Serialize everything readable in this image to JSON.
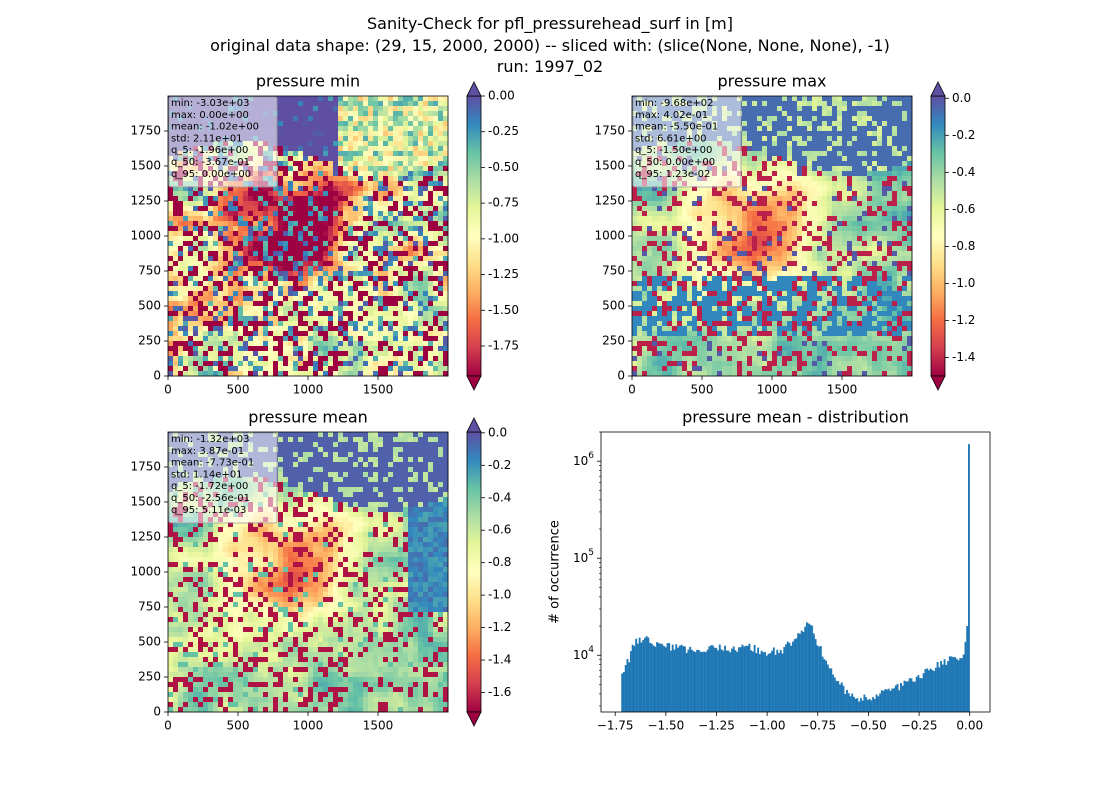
{
  "figure": {
    "title_lines": [
      "Sanity-Check for pfl_pressurehead_surf in [m]",
      "original data shape: (29, 15, 2000, 2000) -- sliced with: (slice(None, None, None), -1)",
      "run: 1997_02"
    ]
  },
  "chart_data": [
    {
      "type": "heatmap",
      "title": "pressure min",
      "xlim": [
        0,
        2000
      ],
      "ylim": [
        0,
        2000
      ],
      "xticks": [
        "0",
        "500",
        "1000",
        "1500"
      ],
      "yticks": [
        "0",
        "250",
        "500",
        "750",
        "1000",
        "1250",
        "1500",
        "1750"
      ],
      "colorbar": {
        "ticks": [
          "0.00",
          "-0.25",
          "-0.50",
          "-0.75",
          "-1.00",
          "-1.25",
          "-1.50",
          "-1.75"
        ],
        "vmin": -1.96,
        "vmax": 0.0,
        "extend": "both",
        "colormap": "Spectral"
      },
      "stats": [
        "min: -3.03e+03",
        "max: 0.00e+00",
        "mean: -1.02e+00",
        "std: 2.11e+01",
        "q_5: -1.96e+00",
        "q_50: -3.67e-01",
        "q_95: 0.00e+00"
      ]
    },
    {
      "type": "heatmap",
      "title": "pressure max",
      "xlim": [
        0,
        2000
      ],
      "ylim": [
        0,
        2000
      ],
      "xticks": [
        "0",
        "500",
        "1000",
        "1500"
      ],
      "yticks": [
        "0",
        "250",
        "500",
        "750",
        "1000",
        "1250",
        "1500",
        "1750"
      ],
      "colorbar": {
        "ticks": [
          "0.0",
          "-0.2",
          "-0.4",
          "-0.6",
          "-0.8",
          "-1.0",
          "-1.2",
          "-1.4"
        ],
        "vmin": -1.5,
        "vmax": 0.0123,
        "extend": "both",
        "colormap": "Spectral"
      },
      "stats": [
        "min: -9.68e+02",
        "max: 4.02e-01",
        "mean: -5.50e-01",
        "std: 6.61e+00",
        "q_5: -1.50e+00",
        "q_50: 0.00e+00",
        "q_95: 1.23e-02"
      ]
    },
    {
      "type": "heatmap",
      "title": "pressure mean",
      "xlim": [
        0,
        2000
      ],
      "ylim": [
        0,
        2000
      ],
      "xticks": [
        "0",
        "500",
        "1000",
        "1500"
      ],
      "yticks": [
        "0",
        "250",
        "500",
        "750",
        "1000",
        "1250",
        "1500",
        "1750"
      ],
      "colorbar": {
        "ticks": [
          "0.0",
          "-0.2",
          "-0.4",
          "-0.6",
          "-0.8",
          "-1.0",
          "-1.2",
          "-1.4",
          "-1.6"
        ],
        "vmin": -1.72,
        "vmax": 0.0051,
        "extend": "both",
        "colormap": "Spectral"
      },
      "stats": [
        "min: -1.32e+03",
        "max: 3.87e-01",
        "mean: -7.73e-01",
        "std: 1.14e+01",
        "q_5: -1.72e+00",
        "q_50: -2.56e-01",
        "q_95: 5.11e-03"
      ]
    },
    {
      "type": "bar",
      "title": "pressure mean - distribution",
      "ylabel": "# of occurrence",
      "yscale": "log",
      "xlim": [
        -1.82,
        0.1
      ],
      "ylim": [
        2600,
        2000000
      ],
      "xticks": [
        "-1.75",
        "-1.50",
        "-1.25",
        "-1.00",
        "-0.75",
        "-0.50",
        "-0.25",
        "0.00"
      ],
      "yticks": [
        "10^4",
        "10^5",
        "10^6"
      ],
      "color": "#1f77b4",
      "bin_range": [
        -1.72,
        0.0
      ],
      "curve_knots": {
        "x": [
          -1.72,
          -1.7,
          -1.68,
          -1.66,
          -1.64,
          -1.62,
          -1.6,
          -1.55,
          -1.5,
          -1.45,
          -1.4,
          -1.35,
          -1.3,
          -1.25,
          -1.2,
          -1.15,
          -1.1,
          -1.05,
          -1.0,
          -0.95,
          -0.92,
          -0.9,
          -0.88,
          -0.86,
          -0.84,
          -0.82,
          -0.8,
          -0.78,
          -0.76,
          -0.74,
          -0.72,
          -0.7,
          -0.68,
          -0.66,
          -0.64,
          -0.62,
          -0.6,
          -0.58,
          -0.56,
          -0.54,
          -0.5,
          -0.45,
          -0.4,
          -0.35,
          -0.3,
          -0.25,
          -0.2,
          -0.15,
          -0.1,
          -0.06,
          -0.03,
          -0.01,
          0.0
        ],
        "y": [
          6000,
          7500,
          9500,
          12500,
          14000,
          14500,
          14500,
          13000,
          12500,
          12000,
          11500,
          11000,
          11000,
          12500,
          11500,
          11500,
          12500,
          11500,
          11000,
          11000,
          11500,
          15000,
          13500,
          15000,
          16000,
          19000,
          22500,
          20500,
          14500,
          12000,
          9500,
          7500,
          6500,
          6000,
          5500,
          4500,
          4000,
          3800,
          3500,
          3500,
          3700,
          4000,
          4400,
          4800,
          5400,
          6000,
          7000,
          8000,
          9000,
          9000,
          9500,
          20000,
          1500000
        ]
      }
    }
  ]
}
